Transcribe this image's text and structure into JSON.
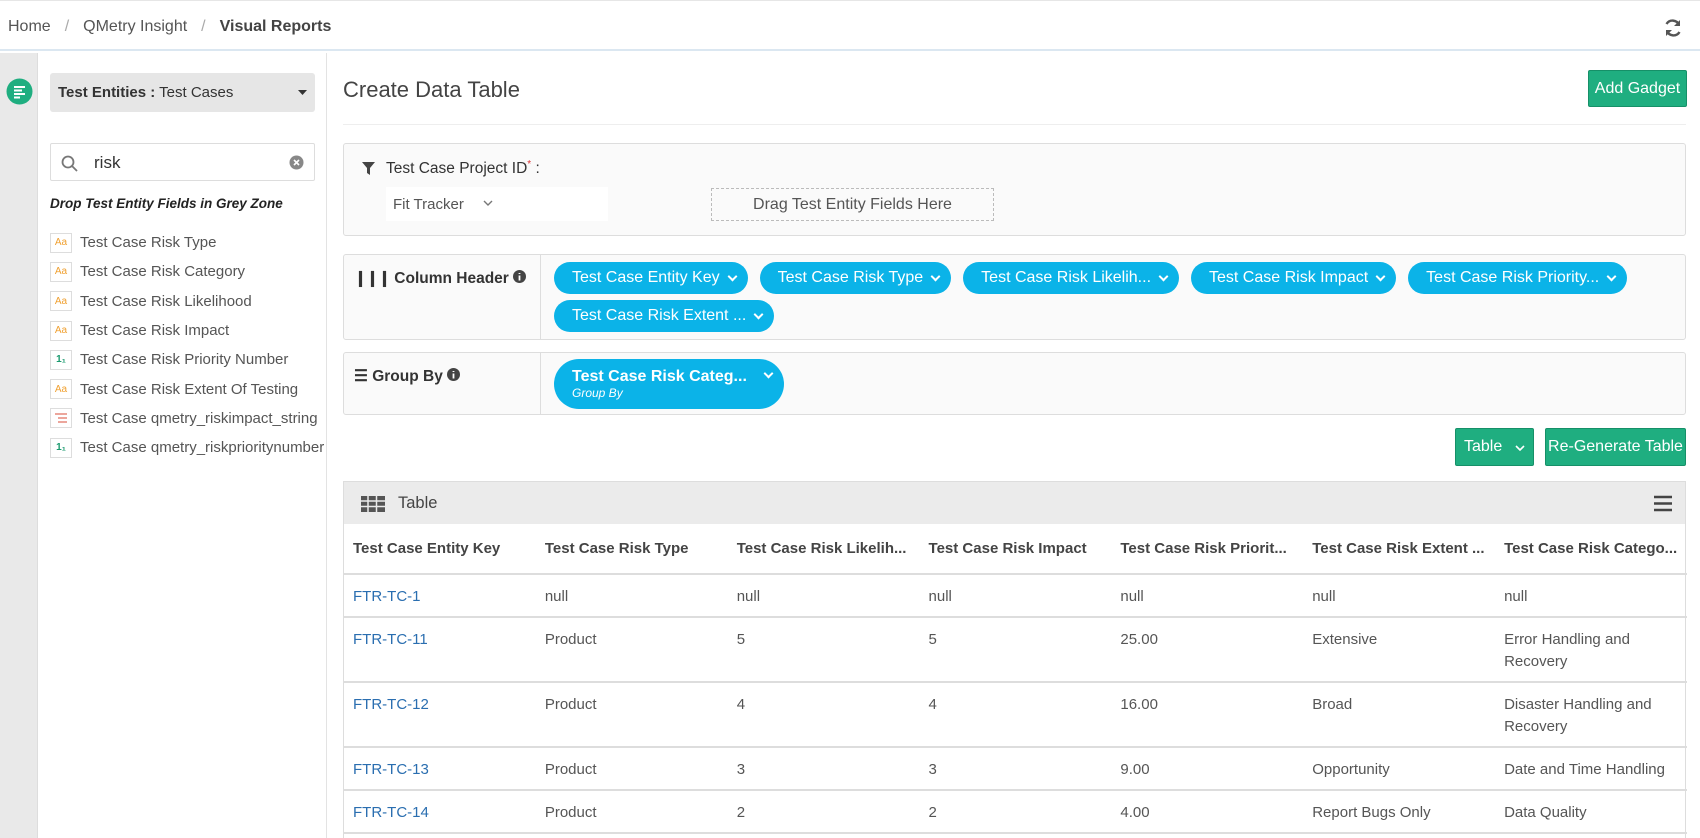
{
  "breadcrumb": [
    "Home",
    "QMetry Insight",
    "Visual Reports"
  ],
  "sidebar": {
    "entity_label": "Test Entities :",
    "entity_value": "Test Cases",
    "search": "risk",
    "hint": "Drop Test Entity Fields in Grey Zone",
    "fields": [
      {
        "icon": "Aa",
        "label": "Test Case Risk Type"
      },
      {
        "icon": "Aa",
        "label": "Test Case Risk Category"
      },
      {
        "icon": "Aa",
        "label": "Test Case Risk Likelihood"
      },
      {
        "icon": "Aa",
        "label": "Test Case Risk Impact"
      },
      {
        "icon": "1₁",
        "label": "Test Case Risk Priority Number"
      },
      {
        "icon": "Aa",
        "label": "Test Case Risk Extent Of Testing"
      },
      {
        "label": "Test Case qmetry_riskimpact_string"
      },
      {
        "icon": "1₁",
        "label": "Test Case qmetry_riskprioritynumber"
      }
    ]
  },
  "main": {
    "title": "Create Data Table",
    "add_button": "Add Gadget",
    "filter": {
      "label": "Test Case Project ID",
      "required": "*",
      "colon": ":",
      "value": "Fit Tracker",
      "dropzone": "Drag Test Entity Fields Here"
    },
    "column_header": {
      "label": "Column Header",
      "chips": [
        "Test Case Entity Key",
        "Test Case Risk Type",
        "Test Case Risk Likelih...",
        "Test Case Risk Impact",
        "Test Case Risk Priority...",
        "Test Case Risk Extent ..."
      ]
    },
    "group_by": {
      "label": "Group By",
      "chip": "Test Case Risk Categ...",
      "chip_sub": "Group By"
    },
    "view_button": "Table",
    "regenerate_button": "Re-Generate Table"
  },
  "table": {
    "title": "Table",
    "columns": [
      "Test Case Entity Key",
      "Test Case Risk Type",
      "Test Case Risk Likelih...",
      "Test Case Risk Impact",
      "Test Case Risk Priorit...",
      "Test Case Risk Extent ...",
      "Test Case Risk Catego..."
    ],
    "rows": [
      [
        "FTR-TC-1",
        "null",
        "null",
        "null",
        "null",
        "null",
        "null"
      ],
      [
        "FTR-TC-11",
        "Product",
        "5",
        "5",
        "25.00",
        "Extensive",
        "Error Handling and Recovery"
      ],
      [
        "FTR-TC-12",
        "Product",
        "4",
        "4",
        "16.00",
        "Broad",
        "Disaster Handling and Recovery"
      ],
      [
        "FTR-TC-13",
        "Product",
        "3",
        "3",
        "9.00",
        "Opportunity",
        "Date and Time Handling"
      ],
      [
        "FTR-TC-14",
        "Product",
        "2",
        "2",
        "4.00",
        "Report Bugs Only",
        "Data Quality"
      ]
    ]
  }
}
